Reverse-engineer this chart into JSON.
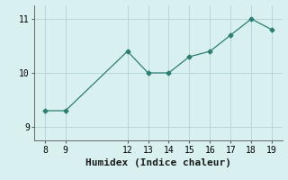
{
  "x": [
    8,
    9,
    12,
    13,
    14,
    15,
    16,
    17,
    18,
    19
  ],
  "y": [
    9.3,
    9.3,
    10.4,
    10.0,
    10.0,
    10.3,
    10.4,
    10.7,
    11.0,
    10.8
  ],
  "xlabel": "Humidex (Indice chaleur)",
  "ylabel": "",
  "xlim": [
    7.5,
    19.5
  ],
  "ylim": [
    8.75,
    11.25
  ],
  "xticks": [
    8,
    9,
    12,
    13,
    14,
    15,
    16,
    17,
    18,
    19
  ],
  "yticks": [
    9,
    10,
    11
  ],
  "line_color": "#2e7d72",
  "marker": "D",
  "marker_size": 2.5,
  "bg_color": "#d8f0f0",
  "grid_color": "#b8d8d8",
  "tick_fontsize": 7,
  "xlabel_fontsize": 8
}
